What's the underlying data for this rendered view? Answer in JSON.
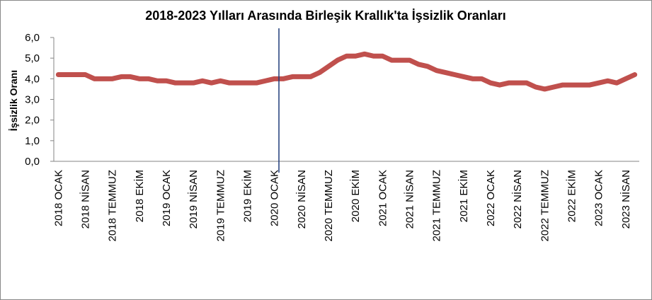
{
  "chart_data": {
    "type": "line",
    "title": "2018-2023 Yılları Arasında  Birleşik Krallık'ta İşsizlik Oranları",
    "y_label": "İşsizlik Oranı",
    "categories": [
      "2018 OCAK",
      null,
      null,
      "2018 NİSAN",
      null,
      null,
      "2018 TEMMUZ",
      null,
      null,
      "2018 EKİM",
      null,
      null,
      "2019 OCAK",
      null,
      null,
      "2019 NİSAN",
      null,
      null,
      "2019 TEMMUZ",
      null,
      null,
      "2019 EKİM",
      null,
      null,
      "2020 OCAK",
      null,
      null,
      "2020 NİSAN",
      null,
      null,
      "2020 TEMMUZ",
      null,
      null,
      "2020 EKİM",
      null,
      null,
      "2021 OCAK",
      null,
      null,
      "2021 NİSAN",
      null,
      null,
      "2021 TEMMUZ",
      null,
      null,
      "2021 EKİM",
      null,
      null,
      "2022 OCAK",
      null,
      null,
      "2022 NİSAN",
      null,
      null,
      "2022 TEMMUZ",
      null,
      null,
      "2022 EKİM",
      null,
      null,
      "2023 OCAK",
      null,
      null,
      "2023 NİSAN",
      null
    ],
    "series": [
      {
        "name": "İşsizlik Oranı",
        "color": "#c0504d",
        "values": [
          4.2,
          4.2,
          4.2,
          4.2,
          4.0,
          4.0,
          4.0,
          4.1,
          4.1,
          4.0,
          4.0,
          3.9,
          3.9,
          3.8,
          3.8,
          3.8,
          3.9,
          3.8,
          3.9,
          3.8,
          3.8,
          3.8,
          3.8,
          3.9,
          4.0,
          4.0,
          4.1,
          4.1,
          4.1,
          4.3,
          4.6,
          4.9,
          5.1,
          5.1,
          5.2,
          5.1,
          5.1,
          4.9,
          4.9,
          4.9,
          4.7,
          4.6,
          4.4,
          4.3,
          4.2,
          4.1,
          4.0,
          4.0,
          3.8,
          3.7,
          3.8,
          3.8,
          3.8,
          3.6,
          3.5,
          3.6,
          3.7,
          3.7,
          3.7,
          3.7,
          3.8,
          3.9,
          3.8,
          4.0,
          4.2
        ]
      }
    ],
    "ylim": [
      0,
      6
    ],
    "yticks": [
      {
        "value": 0,
        "label": "0,0"
      },
      {
        "value": 1,
        "label": "1,0"
      },
      {
        "value": 2,
        "label": "2,0"
      },
      {
        "value": 3,
        "label": "3,0"
      },
      {
        "value": 4,
        "label": "4,0"
      },
      {
        "value": 5,
        "label": "5,0"
      },
      {
        "value": 6,
        "label": "6,0"
      }
    ],
    "grid": false
  }
}
